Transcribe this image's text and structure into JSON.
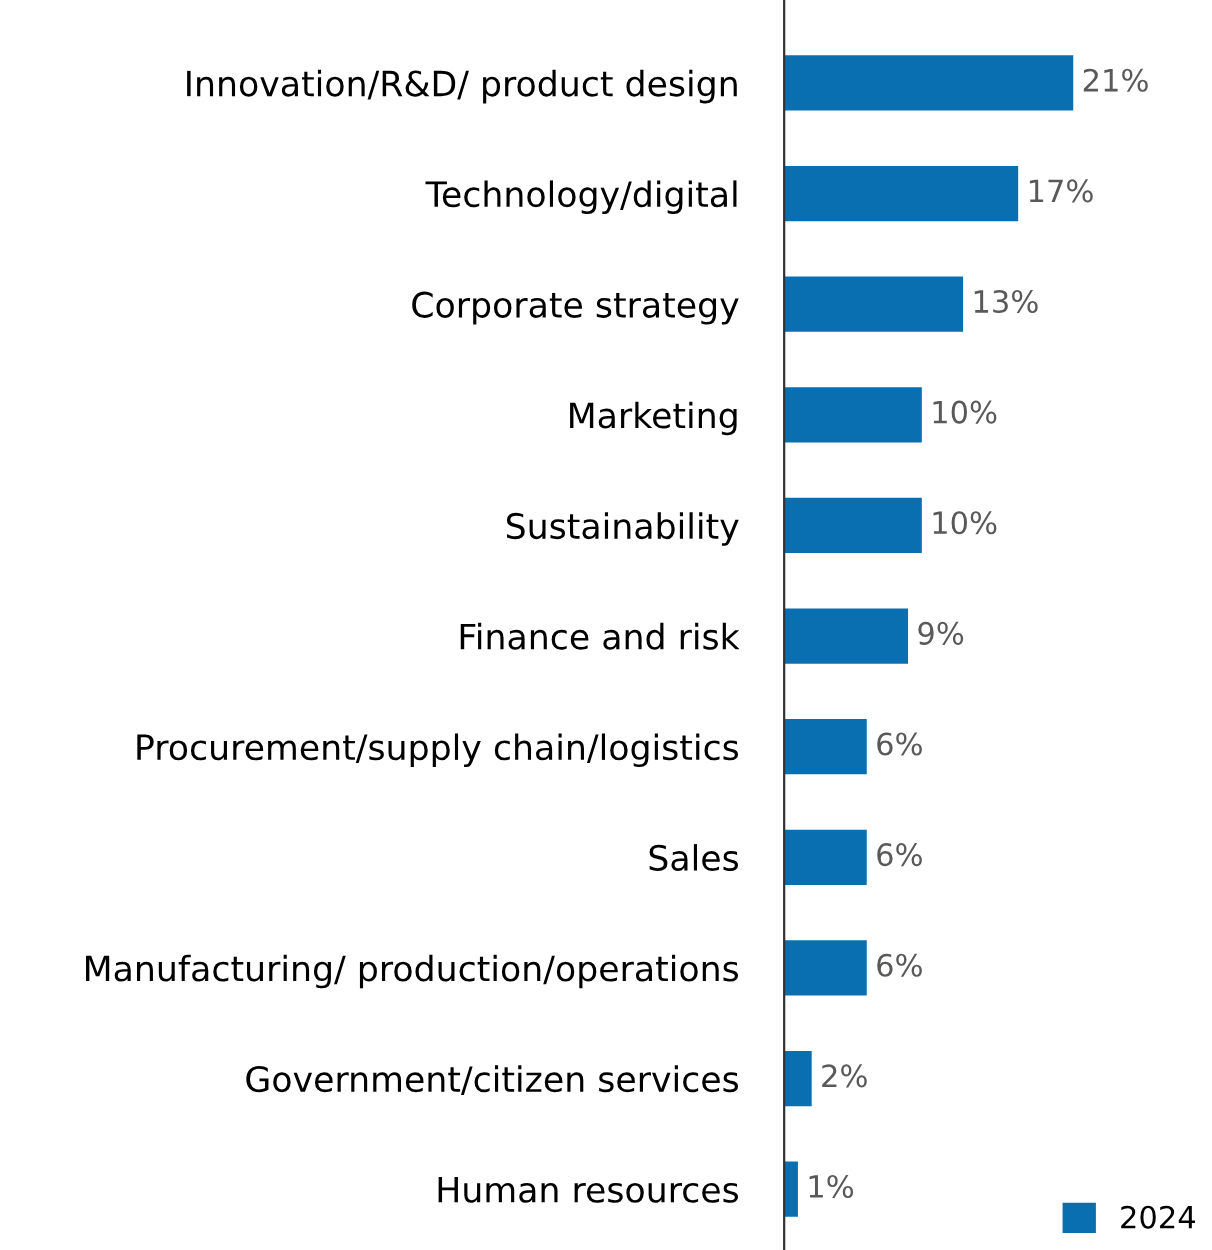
{
  "chart_data": {
    "type": "bar",
    "orientation": "horizontal",
    "categories": [
      "Innovation/R&D/ product design",
      "Technology/digital",
      "Corporate strategy",
      "Marketing",
      "Sustainability",
      "Finance and risk",
      "Procurement/supply chain/logistics",
      "Sales",
      "Manufacturing/ production/operations",
      "Government/citizen services",
      "Human resources"
    ],
    "series": [
      {
        "name": "2024",
        "color": "#0a6fb1",
        "values": [
          21,
          17,
          13,
          10,
          10,
          9,
          6,
          6,
          6,
          2,
          1
        ],
        "value_labels": [
          "21%",
          "17%",
          "13%",
          "10%",
          "10%",
          "9%",
          "6%",
          "6%",
          "6%",
          "2%",
          "1%"
        ]
      }
    ],
    "legend": "bottom right",
    "grid": false
  }
}
